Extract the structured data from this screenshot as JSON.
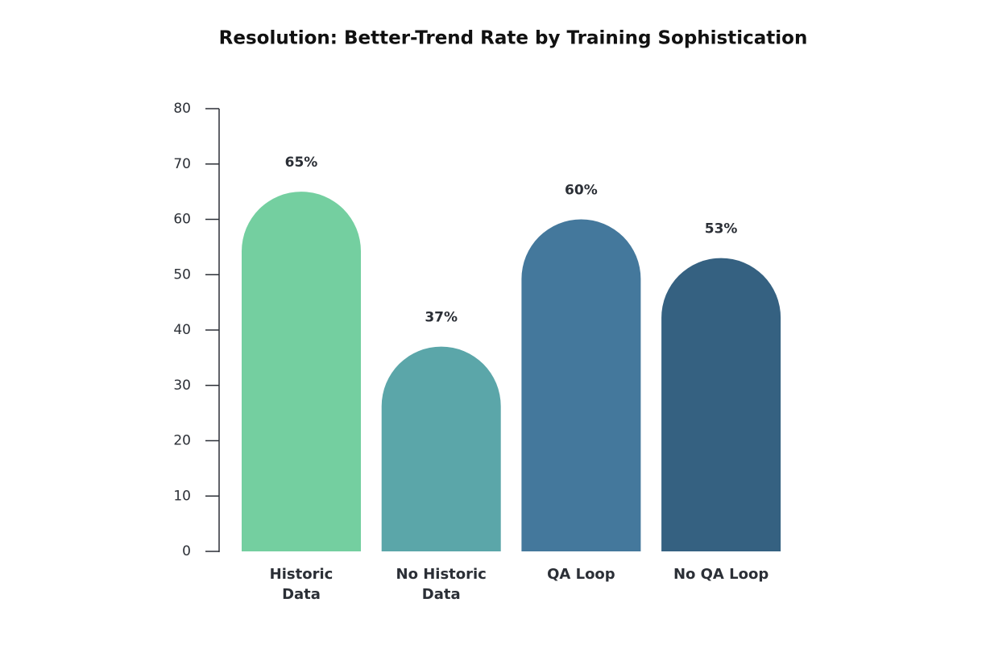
{
  "chart_data": {
    "type": "bar",
    "title": "Resolution: Better-Trend Rate by Training Sophistication",
    "categories": [
      "Historic\nData",
      "No Historic\nData",
      "QA Loop",
      "No QA Loop"
    ],
    "values": [
      65,
      37,
      60,
      53
    ],
    "value_labels": [
      "65%",
      "37%",
      "60%",
      "53%"
    ],
    "colors": [
      "#74cfa0",
      "#5ba6a9",
      "#44789c",
      "#356181"
    ],
    "ylim": [
      0,
      80
    ],
    "yticks": [
      0,
      10,
      20,
      30,
      40,
      50,
      60,
      70,
      80
    ],
    "grid": false
  }
}
